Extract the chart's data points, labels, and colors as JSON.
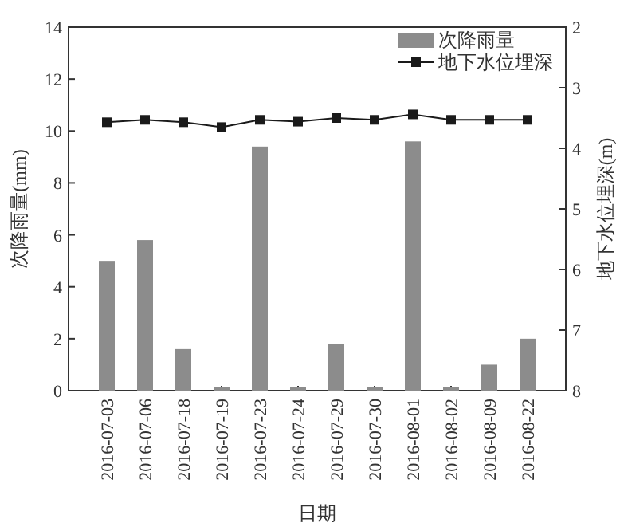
{
  "chart_data": {
    "type": "bar",
    "xlabel": "日期",
    "ylabel": "次降雨量(mm)",
    "y2label": "地下水位埋深(m)",
    "categories": [
      "2016-07-03",
      "2016-07-06",
      "2016-07-18",
      "2016-07-19",
      "2016-07-23",
      "2016-07-24",
      "2016-07-29",
      "2016-07-30",
      "2016-08-01",
      "2016-08-02",
      "2016-08-09",
      "2016-08-22"
    ],
    "series": [
      {
        "name": "次降雨量",
        "color": "#8c8c8c",
        "values": [
          5.0,
          5.8,
          1.6,
          0.15,
          9.4,
          0.15,
          1.8,
          0.15,
          9.6,
          0.15,
          1.0,
          2.0
        ]
      },
      {
        "name": "地下水位埋深",
        "type": "line",
        "axis": "y2",
        "color": "#1a1a1a",
        "values": [
          3.57,
          3.53,
          3.57,
          3.65,
          3.53,
          3.56,
          3.5,
          3.53,
          3.44,
          3.53,
          3.53,
          3.53
        ]
      }
    ],
    "ylim": [
      0,
      14
    ],
    "yticks": [
      0,
      2,
      4,
      6,
      8,
      10,
      12,
      14
    ],
    "y2lim": [
      8,
      2
    ],
    "y2ticks": [
      2,
      3,
      4,
      5,
      6,
      7,
      8
    ],
    "marker": "square",
    "line_style": "solid",
    "legend": "top right"
  }
}
